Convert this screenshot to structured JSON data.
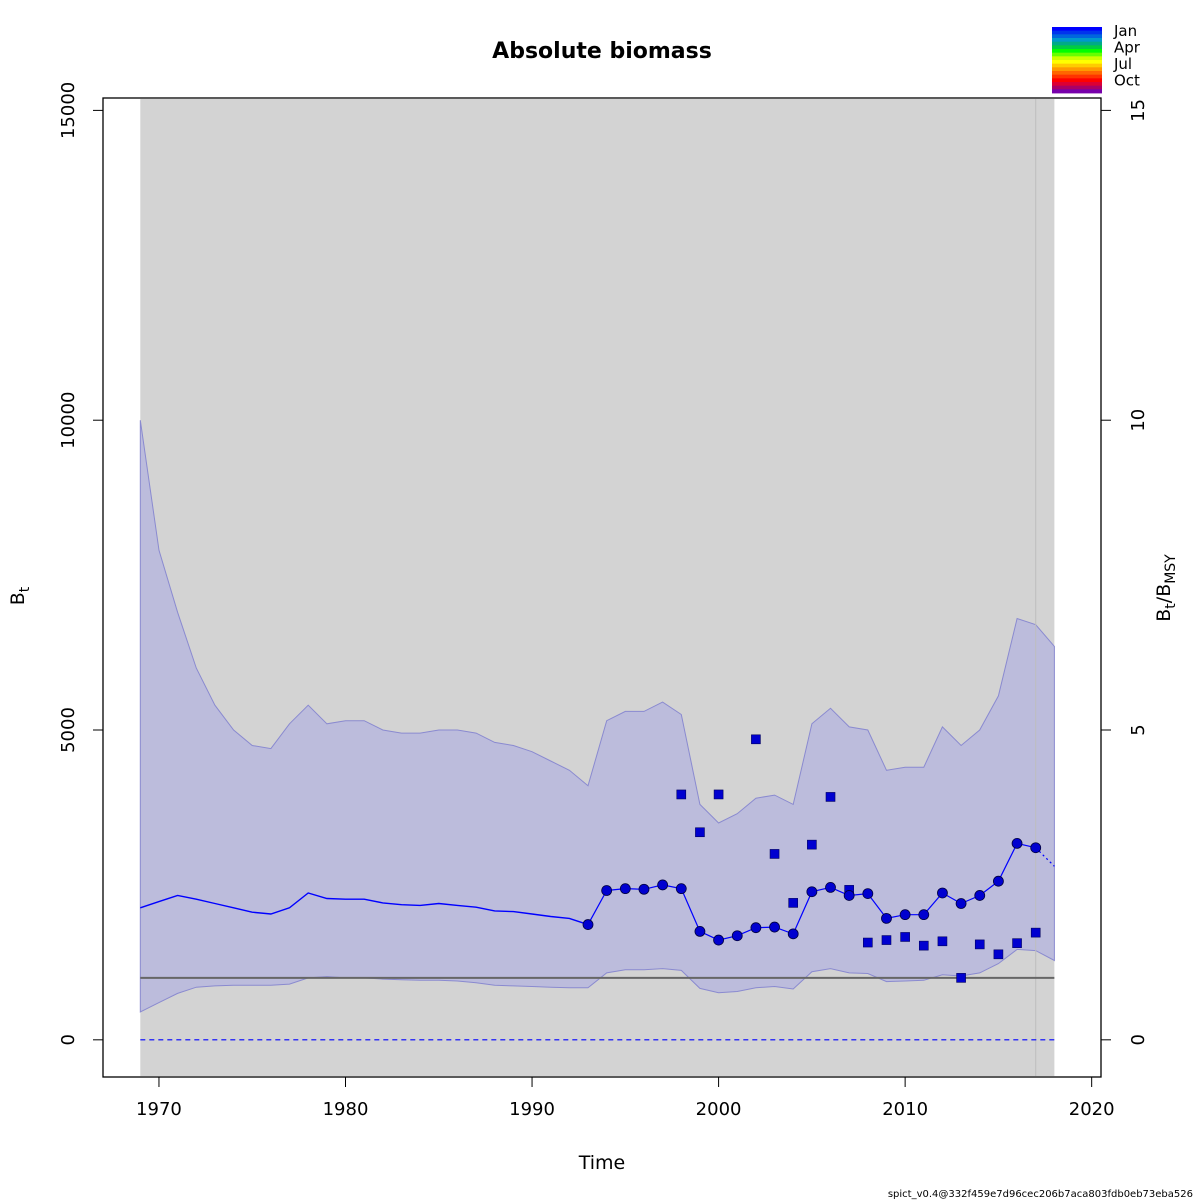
{
  "chart_data": {
    "type": "line",
    "title": "Absolute biomass",
    "xlabel": "Time",
    "ylabel": "B",
    "ylabel_sub": "t",
    "y2label_main": "B",
    "y2label_sub1": "t",
    "y2label_sep": "/B",
    "y2label_sub2": "MSY",
    "xlim": [
      1967,
      2020.5
    ],
    "ylim": [
      -600,
      15200
    ],
    "x_ticks": [
      "1970",
      "1980",
      "1990",
      "2000",
      "2010",
      "2020"
    ],
    "y_ticks": [
      "0",
      "5000",
      "10000",
      "15000"
    ],
    "y2_ticks": [
      "0",
      "5",
      "10",
      "15"
    ],
    "bmsy": 1000,
    "shaded_region": [
      1969,
      2018
    ],
    "vertical_line_x": 2017,
    "estimate_line": {
      "x": [
        1969,
        1970,
        1971,
        1972,
        1973,
        1974,
        1975,
        1976,
        1977,
        1978,
        1979,
        1980,
        1981,
        1982,
        1983,
        1984,
        1985,
        1986,
        1987,
        1988,
        1989,
        1990,
        1991,
        1992,
        1993
      ],
      "y": [
        2130,
        2230,
        2330,
        2270,
        2200,
        2130,
        2060,
        2030,
        2130,
        2370,
        2280,
        2270,
        2270,
        2210,
        2180,
        2170,
        2200,
        2170,
        2140,
        2080,
        2070,
        2030,
        1990,
        1960,
        1860
      ]
    },
    "ci_upper": {
      "x": [
        1969,
        1970,
        1971,
        1972,
        1973,
        1974,
        1975,
        1976,
        1977,
        1978,
        1979,
        1980,
        1981,
        1982,
        1983,
        1984,
        1985,
        1986,
        1987,
        1988,
        1989,
        1990,
        1991,
        1992,
        1993,
        1994,
        1995,
        1996,
        1997,
        1998,
        1999,
        2000,
        2001,
        2002,
        2003,
        2004,
        2005,
        2006,
        2007,
        2008,
        2009,
        2010,
        2011,
        2012,
        2013,
        2014,
        2015,
        2016,
        2017,
        2018
      ],
      "y": [
        10000,
        7900,
        6900,
        6000,
        5400,
        5000,
        4750,
        4700,
        5100,
        5400,
        5100,
        5150,
        5150,
        5000,
        4950,
        4950,
        5000,
        5000,
        4950,
        4800,
        4750,
        4650,
        4500,
        4350,
        4100,
        5150,
        5300,
        5300,
        5450,
        5250,
        3800,
        3500,
        3650,
        3900,
        3950,
        3800,
        5100,
        5350,
        5050,
        5000,
        4350,
        4400,
        4400,
        5050,
        4750,
        5000,
        5550,
        6800,
        6700,
        6350
      ]
    },
    "ci_lower": {
      "x": [
        1969,
        1970,
        1971,
        1972,
        1973,
        1974,
        1975,
        1976,
        1977,
        1978,
        1979,
        1980,
        1981,
        1982,
        1983,
        1984,
        1985,
        1986,
        1987,
        1988,
        1989,
        1990,
        1991,
        1992,
        1993,
        1994,
        1995,
        1996,
        1997,
        1998,
        1999,
        2000,
        2001,
        2002,
        2003,
        2004,
        2005,
        2006,
        2007,
        2008,
        2009,
        2010,
        2011,
        2012,
        2013,
        2014,
        2015,
        2016,
        2017,
        2018
      ],
      "y": [
        450,
        600,
        750,
        850,
        870,
        880,
        880,
        880,
        900,
        1000,
        1020,
        1000,
        1000,
        980,
        970,
        960,
        960,
        950,
        920,
        880,
        870,
        860,
        850,
        840,
        840,
        1080,
        1130,
        1130,
        1150,
        1120,
        830,
        760,
        780,
        840,
        860,
        820,
        1100,
        1150,
        1080,
        1070,
        940,
        950,
        960,
        1050,
        1030,
        1080,
        1230,
        1460,
        1440,
        1280
      ]
    },
    "point_series": {
      "name": "",
      "x": [
        1993,
        1994,
        1995,
        1996,
        1997,
        1998,
        1999,
        2000,
        2001,
        2002,
        2003,
        2004,
        2005,
        2006,
        2007,
        2008,
        2009,
        2010,
        2011,
        2012,
        2013,
        2014,
        2015,
        2016,
        2017
      ],
      "y": [
        1860,
        2410,
        2440,
        2430,
        2500,
        2440,
        1750,
        1610,
        1680,
        1810,
        1820,
        1710,
        2390,
        2460,
        2330,
        2360,
        1960,
        2020,
        2020,
        2370,
        2200,
        2330,
        2560,
        3170,
        3100
      ]
    },
    "prediction_line": {
      "x": [
        2017,
        2017.5,
        2018
      ],
      "y": [
        3100,
        2950,
        2800
      ]
    },
    "square_series": {
      "name": "",
      "x": [
        1998,
        1999,
        2000,
        2002,
        2003,
        2004,
        2005,
        2006,
        2007,
        2008,
        2009,
        2010,
        2011,
        2012,
        2013,
        2014,
        2015,
        2016,
        2017
      ],
      "y": [
        3960,
        3350,
        3960,
        4850,
        3000,
        2210,
        3150,
        3920,
        2420,
        1570,
        1610,
        1660,
        1520,
        1590,
        1000,
        1540,
        1380,
        1560,
        1730
      ]
    },
    "legend": {
      "placement": "top-right",
      "labels": [
        "Jan",
        "Apr",
        "Jul",
        "Oct"
      ],
      "colors": [
        "#0000ff",
        "#0033ee",
        "#0066dd",
        "#0099cc",
        "#00aa88",
        "#00cc44",
        "#00ff00",
        "#66ff00",
        "#ccff00",
        "#ffff00",
        "#ffcc00",
        "#ff9900",
        "#ff6600",
        "#ff3300",
        "#ff0000",
        "#dd0033",
        "#aa0066",
        "#7700aa"
      ]
    },
    "colors": {
      "ci_fill": "#bcbcdc",
      "ci_edge": "#8a8ad0",
      "region_fill": "#d3d3d3",
      "estimate": "#0000ff",
      "points": "#0000d0",
      "bmsy_line": "#666666",
      "zero_line": "#0000ff",
      "vline": "#bdbdbd"
    },
    "footnote": "spict_v0.4@332f459e7d96cec206b7aca803fdb0eb73eba526"
  }
}
